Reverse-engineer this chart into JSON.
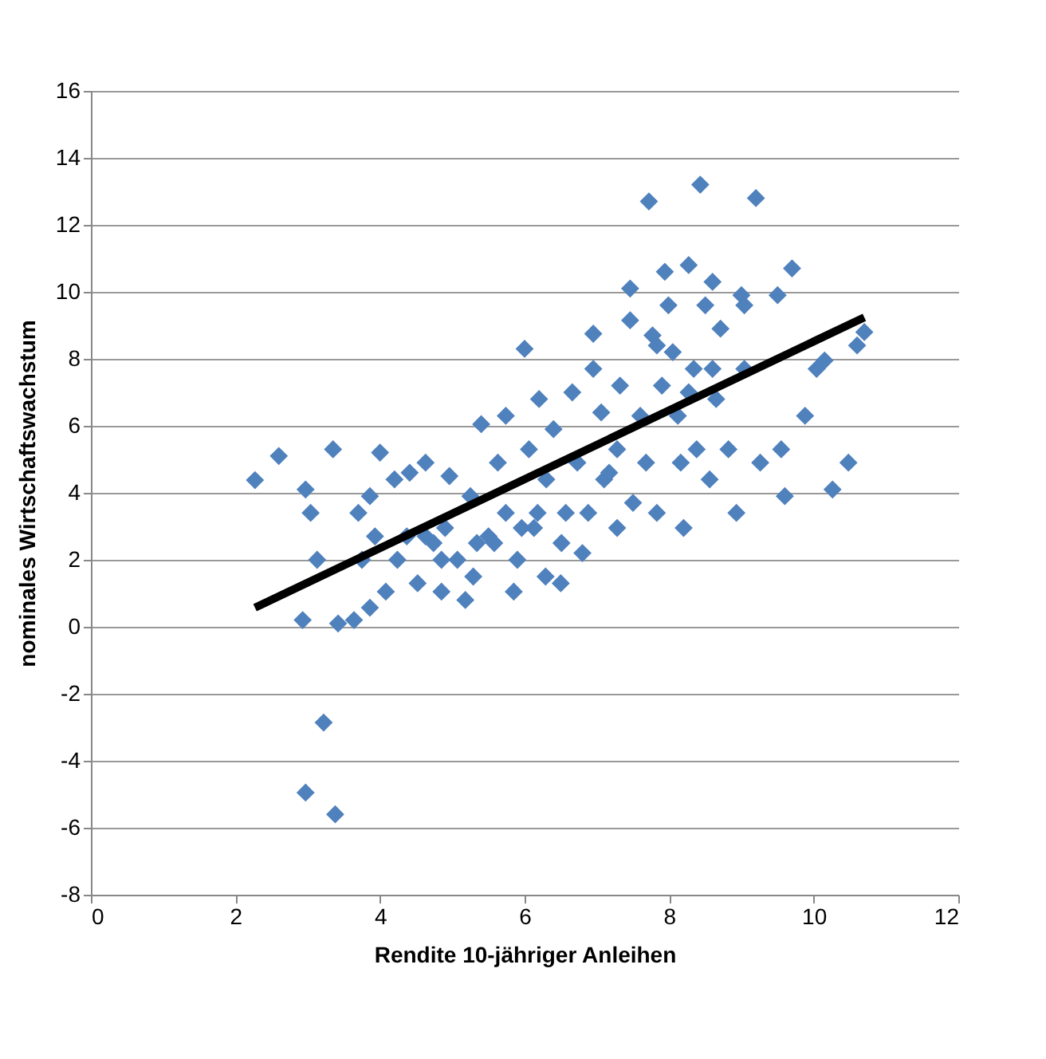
{
  "chart_data": {
    "type": "scatter",
    "xlabel": "Rendite 10-jähriger Anleihen",
    "ylabel": "nominales Wirtschaftswachstum",
    "xlim": [
      0,
      12
    ],
    "xticks": [
      0,
      2,
      4,
      6,
      8,
      10,
      12
    ],
    "ylim": [
      -8,
      16
    ],
    "yticks": [
      -8,
      -6,
      -4,
      -2,
      0,
      2,
      4,
      6,
      8,
      10,
      12,
      14,
      16
    ],
    "grid": "y",
    "series": [
      {
        "marker": "diamond",
        "color": "#4f81bd",
        "x": [
          2.27,
          2.6,
          2.93,
          2.97,
          3.04,
          3.13,
          3.22,
          2.97,
          3.38,
          3.35,
          3.42,
          3.64,
          3.7,
          3.75,
          3.86,
          3.93,
          4.0,
          4.08,
          4.2,
          4.24,
          3.86,
          4.41,
          4.37,
          4.52,
          4.63,
          4.74,
          4.85,
          4.9,
          4.96,
          5.07,
          5.18,
          5.25,
          5.34,
          5.4,
          5.5,
          5.63,
          5.74,
          5.74,
          5.85,
          5.9,
          6.0,
          6.06,
          6.13,
          6.2,
          6.3,
          6.4,
          6.5,
          6.57,
          6.66,
          6.73,
          6.8,
          6.95,
          6.95,
          7.06,
          7.1,
          7.28,
          7.32,
          7.46,
          7.46,
          7.5,
          7.6,
          7.68,
          7.72,
          7.77,
          7.83,
          7.9,
          7.94,
          7.99,
          8.05,
          8.12,
          8.16,
          8.2,
          8.27,
          8.34,
          8.38,
          8.43,
          8.5,
          8.56,
          8.6,
          8.65,
          8.71,
          8.82,
          8.93,
          9.0,
          9.04,
          9.2,
          9.26,
          9.6,
          9.55,
          9.7,
          9.88,
          10.04,
          10.26,
          10.48,
          10.6,
          10.7,
          9.04,
          9.5,
          10.15,
          4.63,
          4.85,
          5.29,
          5.58,
          5.96,
          6.18,
          6.29,
          6.51,
          6.88,
          7.17,
          7.28,
          8.27,
          7.83,
          8.6
        ],
        "values": [
          4.38,
          5.1,
          0.2,
          4.1,
          3.4,
          2.0,
          -2.86,
          -4.95,
          -5.6,
          5.3,
          0.1,
          0.2,
          3.4,
          2.0,
          3.9,
          2.7,
          5.2,
          1.05,
          4.4,
          2.0,
          0.57,
          4.6,
          2.7,
          1.3,
          4.9,
          2.5,
          1.05,
          2.95,
          4.5,
          2.0,
          0.8,
          3.9,
          2.5,
          6.05,
          2.7,
          4.9,
          6.3,
          3.4,
          1.05,
          2.0,
          8.3,
          5.3,
          2.95,
          6.8,
          4.4,
          5.9,
          1.3,
          3.4,
          7.0,
          4.9,
          2.2,
          7.7,
          8.75,
          6.4,
          4.4,
          5.3,
          7.2,
          9.15,
          10.1,
          3.7,
          6.3,
          4.9,
          12.7,
          8.7,
          3.4,
          7.2,
          10.6,
          9.6,
          8.2,
          6.3,
          4.9,
          2.95,
          10.8,
          7.7,
          5.3,
          13.2,
          9.6,
          4.4,
          10.3,
          6.8,
          8.9,
          5.3,
          3.4,
          9.9,
          9.6,
          12.8,
          4.9,
          3.9,
          5.3,
          10.7,
          6.3,
          7.7,
          4.1,
          4.9,
          8.4,
          8.8,
          7.7,
          9.9,
          7.95,
          2.7,
          2.0,
          1.5,
          2.5,
          2.95,
          3.4,
          1.5,
          2.5,
          3.4,
          4.6,
          2.95,
          7.0,
          8.4,
          7.7
        ]
      },
      {
        "type": "line",
        "color": "#000000",
        "x": [
          2.27,
          10.7
        ],
        "values": [
          0.57,
          9.24
        ]
      }
    ]
  }
}
